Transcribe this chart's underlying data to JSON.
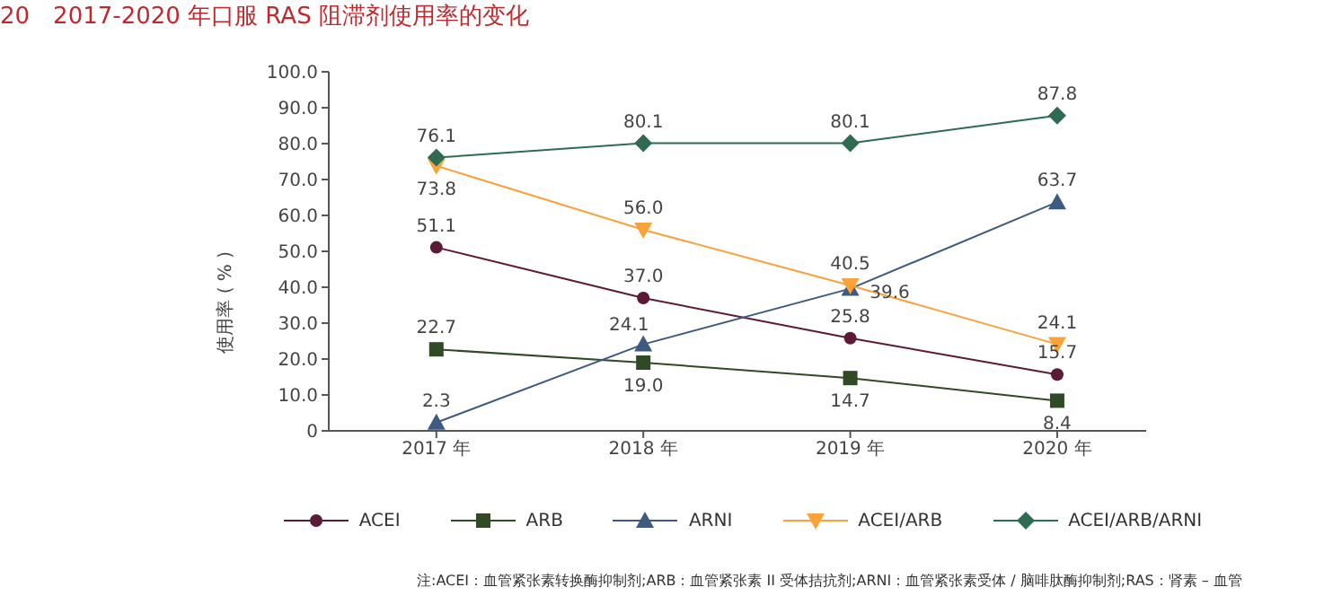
{
  "chart_data": {
    "type": "line",
    "title": "20　2017-2020 年口服 RAS 阻滞剂使用率的变化",
    "ylabel": "使用率 ( % )",
    "categories": [
      "2017 年",
      "2018 年",
      "2019 年",
      "2020 年"
    ],
    "series": [
      {
        "name": "ACEI",
        "color": "#5b1a36",
        "marker": "circle",
        "values": [
          51.1,
          37.0,
          25.8,
          15.7
        ],
        "value_labels": [
          "51.1",
          "37.0",
          "25.8",
          "15.7"
        ]
      },
      {
        "name": "ARB",
        "color": "#2f4a24",
        "marker": "square",
        "values": [
          22.7,
          19.0,
          14.7,
          8.4
        ],
        "value_labels": [
          "22.7",
          "19.0",
          "14.7",
          "8.4"
        ]
      },
      {
        "name": "ARNI",
        "color": "#3e5a80",
        "marker": "triangle",
        "values": [
          2.3,
          24.1,
          39.6,
          63.7
        ],
        "value_labels": [
          "2.3",
          "24.1",
          "39.6",
          "63.7"
        ]
      },
      {
        "name": "ACEI/ARB",
        "color": "#f9a23a",
        "marker": "triangle_down",
        "values": [
          73.8,
          56.0,
          40.5,
          24.1
        ],
        "value_labels": [
          "73.8",
          "56.0",
          "40.5",
          "24.1"
        ]
      },
      {
        "name": "ACEI/ARB/ARNI",
        "color": "#2f6b50",
        "marker": "diamond",
        "values": [
          76.1,
          80.1,
          80.1,
          87.8
        ],
        "value_labels": [
          "76.1",
          "80.1",
          "80.1",
          "87.8"
        ]
      }
    ],
    "ylim": [
      0,
      100
    ],
    "yticks": [
      {
        "value": 0,
        "label": "0"
      },
      {
        "value": 10,
        "label": "10.0"
      },
      {
        "value": 20,
        "label": "20.0"
      },
      {
        "value": 30,
        "label": "30.0"
      },
      {
        "value": 40,
        "label": "40.0"
      },
      {
        "value": 50,
        "label": "50.0"
      },
      {
        "value": 60,
        "label": "60.0"
      },
      {
        "value": 70,
        "label": "70.0"
      },
      {
        "value": 80,
        "label": "80.0"
      },
      {
        "value": 90,
        "label": "90.0"
      },
      {
        "value": 100,
        "label": "100.0"
      }
    ],
    "grid": false,
    "legend": "bottom",
    "annotations": [
      "注:ACEI：血管紧张素转换酶抑制剂;ARB：血管紧张素 II 受体拮抗剂;ARNI：血管紧张素受体 / 脑啡肽酶抑制剂;RAS：肾素 – 血管"
    ]
  }
}
